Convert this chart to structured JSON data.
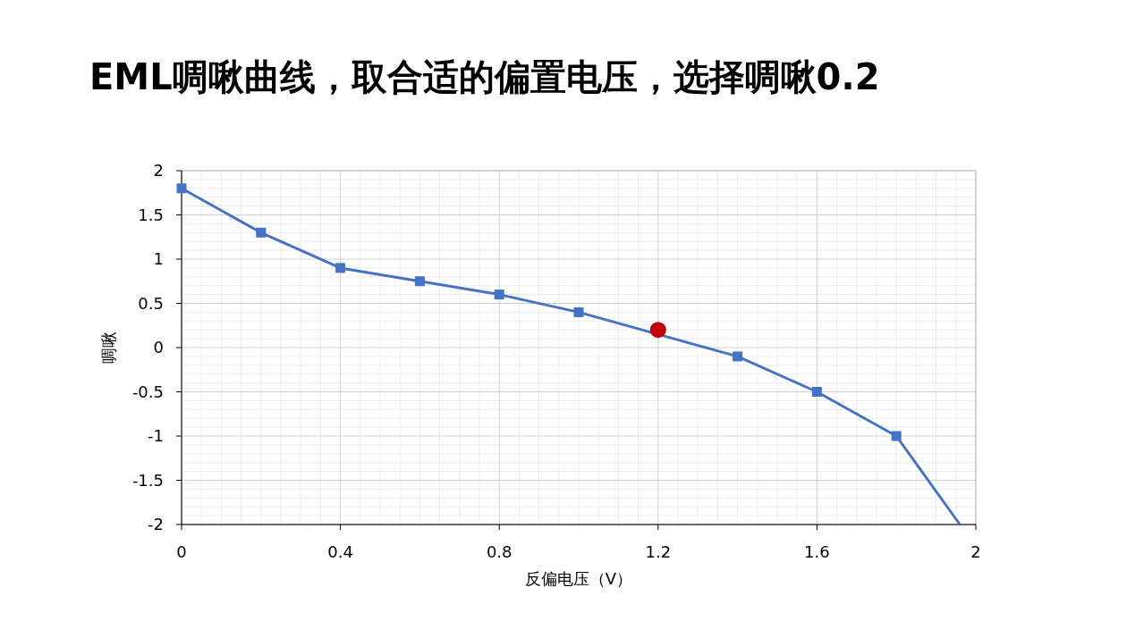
{
  "chart_data": {
    "type": "line",
    "title": "EML啁啾曲线，取合适的偏置电压，选择啁啾0.2",
    "xlabel": "反偏电压（V）",
    "ylabel": "啁啾",
    "xlim": [
      0,
      2
    ],
    "xticks": [
      0,
      0.4,
      0.8,
      1.2,
      1.6,
      2
    ],
    "ylim": [
      -2,
      2
    ],
    "yticks": [
      -2,
      -1.5,
      -1,
      -0.5,
      0,
      0.5,
      1,
      1.5,
      2
    ],
    "grid": true,
    "line_style": "solid",
    "series": [
      {
        "type": "line",
        "color": "#4472c4",
        "marker": "square",
        "x": [
          0,
          0.2,
          0.4,
          0.6,
          0.8,
          1.0,
          1.2,
          1.4,
          1.6,
          1.8
        ],
        "values": [
          1.8,
          1.3,
          0.9,
          0.75,
          0.6,
          0.4,
          null,
          -0.1,
          -0.5,
          -1.0
        ]
      },
      {
        "type": "line",
        "color": "#4472c4",
        "marker": "none",
        "x": [
          1.8,
          1.96
        ],
        "values": [
          -1.0,
          -2.0
        ]
      },
      {
        "type": "scatter",
        "color": "#c00000",
        "marker": "circle",
        "x": [
          1.2
        ],
        "values": [
          0.2
        ]
      }
    ]
  }
}
